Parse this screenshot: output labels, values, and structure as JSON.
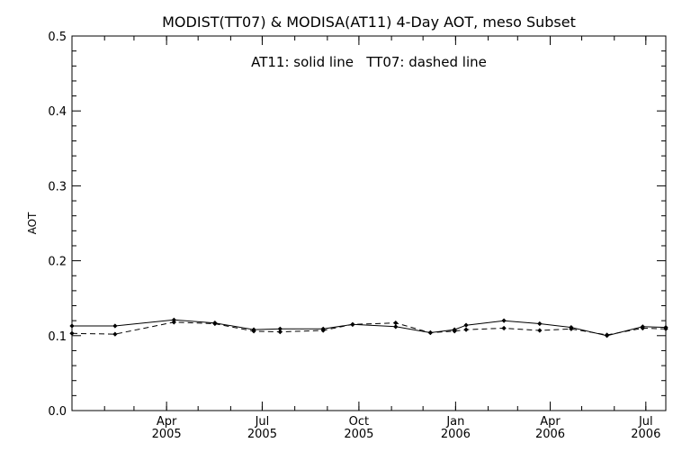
{
  "chart_data": {
    "type": "line",
    "title": "MODIST(TT07) & MODISA(AT11) 4-Day AOT, meso Subset",
    "annotation": "AT11: solid line   TT07: dashed line",
    "ylabel": "AOT",
    "xlabel": "",
    "ylim": [
      0.0,
      0.5
    ],
    "xlim": [
      "2005-01-01",
      "2006-07-20"
    ],
    "grid": false,
    "legend": "none",
    "y_ticks": [
      "0.0",
      "0.1",
      "0.2",
      "0.3",
      "0.4",
      "0.5"
    ],
    "x_ticks": [
      {
        "date": "2005-04-01",
        "month": "Apr",
        "year": "2005"
      },
      {
        "date": "2005-07-01",
        "month": "Jul",
        "year": "2005"
      },
      {
        "date": "2005-10-01",
        "month": "Oct",
        "year": "2005"
      },
      {
        "date": "2006-01-01",
        "month": "Jan",
        "year": "2006"
      },
      {
        "date": "2006-04-01",
        "month": "Apr",
        "year": "2006"
      },
      {
        "date": "2006-07-01",
        "month": "Jul",
        "year": "2006"
      }
    ],
    "series": [
      {
        "name": "AT11",
        "line_style": "solid",
        "points": [
          {
            "x": "2005-01-01",
            "y": 0.113
          },
          {
            "x": "2005-02-11",
            "y": 0.113
          },
          {
            "x": "2005-04-08",
            "y": 0.121
          },
          {
            "x": "2005-05-17",
            "y": 0.117
          },
          {
            "x": "2005-06-23",
            "y": 0.108
          },
          {
            "x": "2005-07-18",
            "y": 0.109
          },
          {
            "x": "2005-08-28",
            "y": 0.109
          },
          {
            "x": "2005-09-25",
            "y": 0.115
          },
          {
            "x": "2005-11-05",
            "y": 0.112
          },
          {
            "x": "2005-12-08",
            "y": 0.104
          },
          {
            "x": "2005-12-31",
            "y": 0.108
          },
          {
            "x": "2006-01-11",
            "y": 0.114
          },
          {
            "x": "2006-02-16",
            "y": 0.12
          },
          {
            "x": "2006-03-22",
            "y": 0.116
          },
          {
            "x": "2006-04-21",
            "y": 0.111
          },
          {
            "x": "2006-05-25",
            "y": 0.1
          },
          {
            "x": "2006-06-28",
            "y": 0.112
          },
          {
            "x": "2006-07-20",
            "y": 0.111
          }
        ]
      },
      {
        "name": "TT07",
        "line_style": "dashed",
        "points": [
          {
            "x": "2005-01-01",
            "y": 0.103
          },
          {
            "x": "2005-02-11",
            "y": 0.102
          },
          {
            "x": "2005-04-08",
            "y": 0.118
          },
          {
            "x": "2005-05-17",
            "y": 0.116
          },
          {
            "x": "2005-06-23",
            "y": 0.106
          },
          {
            "x": "2005-07-18",
            "y": 0.105
          },
          {
            "x": "2005-08-28",
            "y": 0.107
          },
          {
            "x": "2005-09-25",
            "y": 0.115
          },
          {
            "x": "2005-11-05",
            "y": 0.117
          },
          {
            "x": "2005-12-08",
            "y": 0.104
          },
          {
            "x": "2005-12-31",
            "y": 0.106
          },
          {
            "x": "2006-01-11",
            "y": 0.108
          },
          {
            "x": "2006-02-16",
            "y": 0.11
          },
          {
            "x": "2006-03-22",
            "y": 0.107
          },
          {
            "x": "2006-04-21",
            "y": 0.109
          },
          {
            "x": "2006-05-25",
            "y": 0.101
          },
          {
            "x": "2006-06-28",
            "y": 0.11
          },
          {
            "x": "2006-07-20",
            "y": 0.109
          }
        ]
      }
    ]
  }
}
